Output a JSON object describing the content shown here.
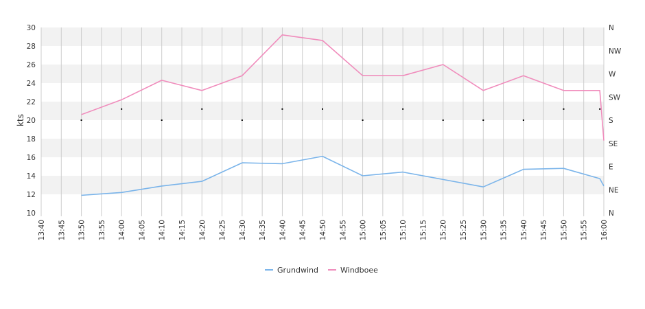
{
  "chart_data": {
    "type": "line",
    "ylabel": "kts",
    "ylim": [
      10,
      30
    ],
    "yticks": [
      10,
      12,
      14,
      16,
      18,
      20,
      22,
      24,
      26,
      28,
      30
    ],
    "xlim": [
      "13:40",
      "16:00"
    ],
    "xticks": [
      "13:40",
      "13:45",
      "13:50",
      "13:55",
      "14:00",
      "14:05",
      "14:10",
      "14:15",
      "14:20",
      "14:25",
      "14:30",
      "14:35",
      "14:40",
      "14:45",
      "14:50",
      "14:55",
      "15:00",
      "15:05",
      "15:10",
      "15:15",
      "15:20",
      "15:25",
      "15:30",
      "15:35",
      "15:40",
      "15:45",
      "15:50",
      "15:55",
      "16:00"
    ],
    "right_axis": {
      "labels": [
        "N",
        "NE",
        "E",
        "SE",
        "S",
        "SW",
        "W",
        "NW",
        "N"
      ],
      "range": [
        0,
        360
      ]
    },
    "grid": true,
    "legend_position": "bottom-center",
    "series": [
      {
        "name": "Grundwind",
        "color": "#7ab4ea",
        "points": [
          [
            "13:50",
            11.9
          ],
          [
            "14:00",
            12.2
          ],
          [
            "14:10",
            12.9
          ],
          [
            "14:20",
            13.4
          ],
          [
            "14:30",
            15.4
          ],
          [
            "14:40",
            15.3
          ],
          [
            "14:50",
            16.1
          ],
          [
            "15:00",
            14.0
          ],
          [
            "15:10",
            14.4
          ],
          [
            "15:20",
            13.6
          ],
          [
            "15:30",
            12.8
          ],
          [
            "15:40",
            14.7
          ],
          [
            "15:50",
            14.8
          ],
          [
            "15:59",
            13.7
          ],
          [
            "16:00",
            12.9
          ]
        ]
      },
      {
        "name": "Windboee",
        "color": "#f08cbc",
        "points": [
          [
            "13:50",
            20.6
          ],
          [
            "14:00",
            22.2
          ],
          [
            "14:10",
            24.3
          ],
          [
            "14:20",
            23.2
          ],
          [
            "14:30",
            24.8
          ],
          [
            "14:40",
            29.2
          ],
          [
            "14:50",
            28.6
          ],
          [
            "15:00",
            24.8
          ],
          [
            "15:10",
            24.8
          ],
          [
            "15:20",
            26.0
          ],
          [
            "15:30",
            23.2
          ],
          [
            "15:40",
            24.8
          ],
          [
            "15:50",
            23.2
          ],
          [
            "15:59",
            23.2
          ],
          [
            "16:00",
            17.8
          ]
        ]
      },
      {
        "name": "direction",
        "type": "scatter",
        "color": "#000000",
        "points": [
          [
            "13:50",
            20.0
          ],
          [
            "14:00",
            21.2
          ],
          [
            "14:10",
            20.0
          ],
          [
            "14:20",
            21.2
          ],
          [
            "14:30",
            20.0
          ],
          [
            "14:40",
            21.2
          ],
          [
            "14:50",
            21.2
          ],
          [
            "15:00",
            20.0
          ],
          [
            "15:10",
            21.2
          ],
          [
            "15:20",
            20.0
          ],
          [
            "15:30",
            20.0
          ],
          [
            "15:40",
            20.0
          ],
          [
            "15:50",
            21.2
          ],
          [
            "15:59",
            21.2
          ]
        ]
      }
    ]
  }
}
